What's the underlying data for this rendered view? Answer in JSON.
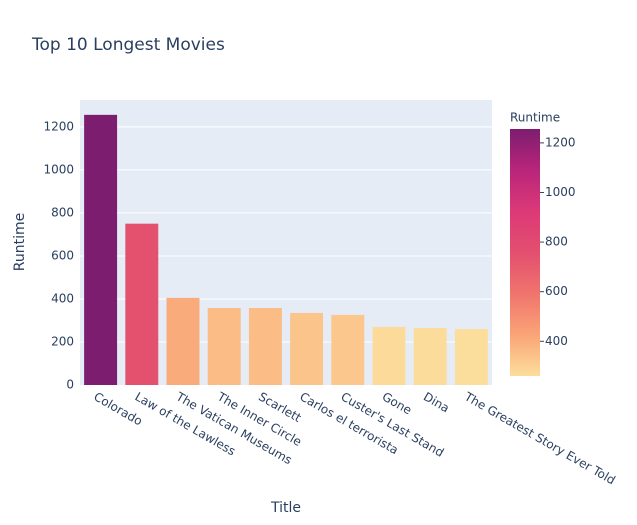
{
  "chart_data": {
    "type": "bar",
    "title": "Top 10 Longest Movies",
    "x_label": "Title",
    "y_label": "Runtime",
    "categories": [
      "Colorado",
      "Law of the Lawless",
      "The Vatican Museums",
      "The Inner Circle",
      "Scarlett",
      "Carlos el terrorista",
      "Custer's Last Stand",
      "Gone",
      "Dina",
      "The Greatest Story Ever Told"
    ],
    "values": [
      1256,
      750,
      405,
      358,
      358,
      335,
      326,
      270,
      265,
      260
    ],
    "ylim": [
      0,
      1325
    ],
    "yticks": [
      0,
      200,
      400,
      600,
      800,
      1000,
      1200
    ],
    "grid": true,
    "colorscale": [
      "#fcde9c",
      "#faa476",
      "#f0746e",
      "#e34f6f",
      "#dc3977",
      "#b9257a",
      "#7c1d6f"
    ],
    "colorbar": {
      "title": "Runtime",
      "ticks": [
        400,
        600,
        800,
        1000,
        1200
      ]
    }
  }
}
